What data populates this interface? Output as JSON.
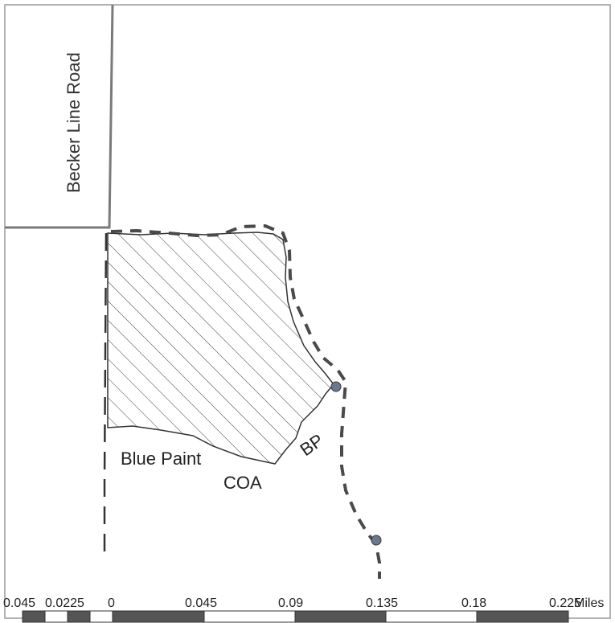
{
  "road": {
    "name": "Becker Line Road"
  },
  "labels": {
    "blue_paint": "Blue Paint",
    "coa": "COA",
    "bp": "BP"
  },
  "scale_bar": {
    "ticks": [
      "0.045",
      "0.0225",
      "0",
      "0.045",
      "0.09",
      "0.135",
      "0.18",
      "0.225"
    ],
    "unit": "Miles"
  },
  "colors": {
    "road": "#7a7a7a",
    "hatch": "#3a3a3a",
    "boundary": "#4a4a4a",
    "marker": "#6a7890",
    "scale_dark": "#555555"
  }
}
